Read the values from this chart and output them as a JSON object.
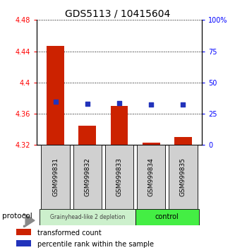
{
  "title": "GDS5113 / 10415604",
  "samples": [
    "GSM999831",
    "GSM999832",
    "GSM999833",
    "GSM999834",
    "GSM999835"
  ],
  "bar_values": [
    4.447,
    4.345,
    4.37,
    4.323,
    4.33
  ],
  "bar_base": 4.32,
  "percentile_values": [
    4.375,
    4.373,
    4.374,
    4.372,
    4.372
  ],
  "ylim_left": [
    4.32,
    4.48
  ],
  "ylim_right": [
    0,
    100
  ],
  "yticks_left": [
    4.32,
    4.36,
    4.4,
    4.44,
    4.48
  ],
  "yticks_right": [
    0,
    25,
    50,
    75,
    100
  ],
  "ytick_labels_right": [
    "0",
    "25",
    "50",
    "75",
    "100%"
  ],
  "bar_color": "#cc2200",
  "blue_color": "#2233bb",
  "group1_samples": [
    0,
    1,
    2
  ],
  "group2_samples": [
    3,
    4
  ],
  "group1_label": "Grainyhead-like 2 depletion",
  "group2_label": "control",
  "group1_color": "#ccf0cc",
  "group2_color": "#44ee44",
  "protocol_label": "protocol",
  "legend_red_label": "  transformed count",
  "legend_blue_label": "  percentile rank within the sample",
  "title_fontsize": 10,
  "tick_fontsize": 7,
  "label_fontsize": 7.5
}
